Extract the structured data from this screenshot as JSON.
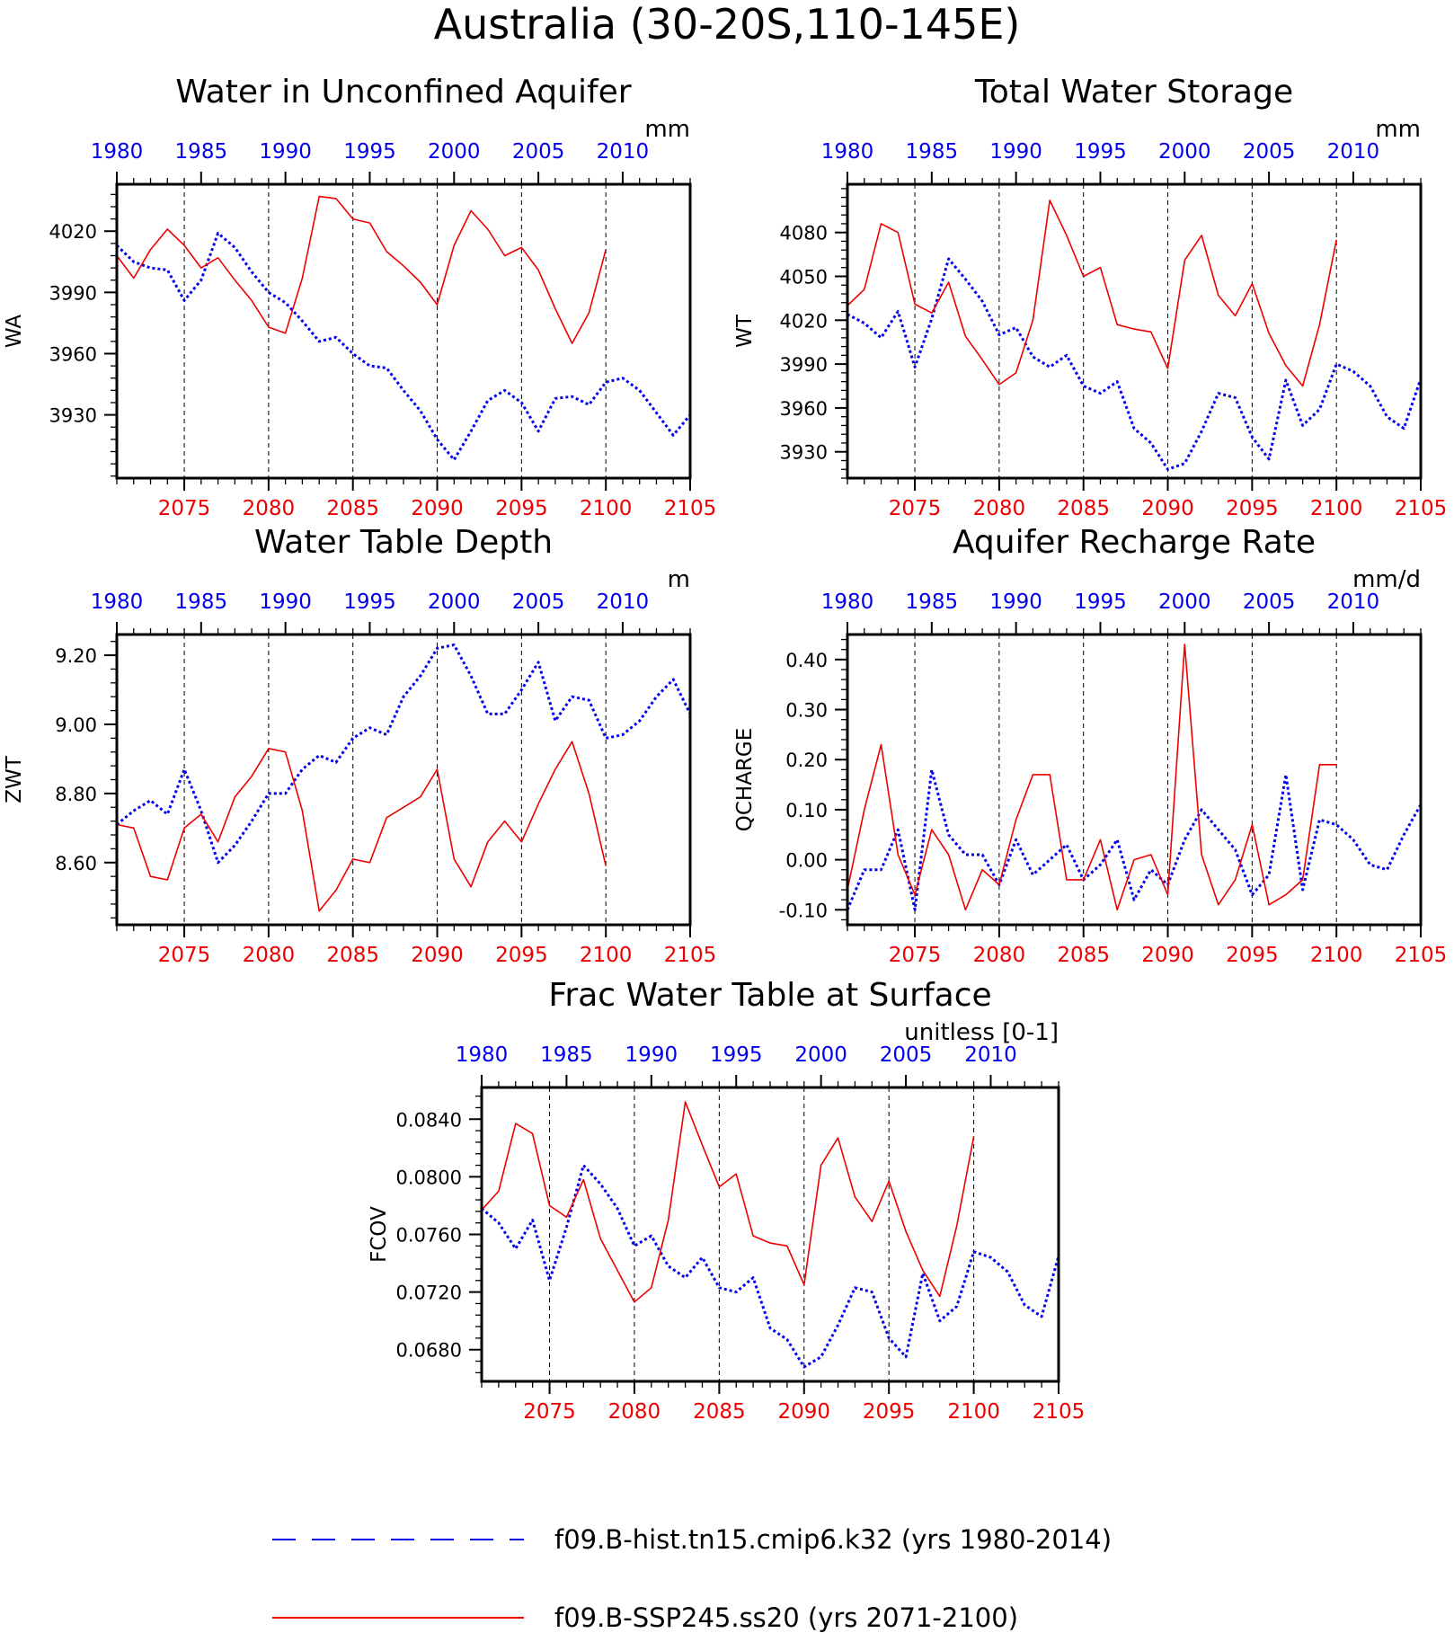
{
  "title": "Australia (30-20S,110-145E)",
  "colors": {
    "hist": "#0000ee",
    "ssp": "#ee0000",
    "axis": "#000000"
  },
  "legend": [
    {
      "label": "f09.B-hist.tn15.cmip6.k32 (yrs 1980-2014)",
      "color": "#0000ee",
      "style": "dashed"
    },
    {
      "label": "f09.B-SSP245.ss20 (yrs 2071-2100)",
      "color": "#ee0000",
      "style": "solid"
    }
  ],
  "chart_data": [
    {
      "type": "line",
      "title": "Water in Unconfined Aquifer",
      "units": "mm",
      "ylabel": "WA",
      "ylim": [
        3899,
        4043
      ],
      "yticks": [
        3930,
        3960,
        3990,
        4020
      ],
      "ytick_labels": [
        "3930",
        "3960",
        "3990",
        "4020"
      ],
      "hist_xlim": [
        1980,
        2014
      ],
      "ssp_xlim": [
        2071,
        2105
      ],
      "hist_ticks": [
        1980,
        1985,
        1990,
        1995,
        2000,
        2005,
        2010
      ],
      "ssp_ticks": [
        2075,
        2080,
        2085,
        2090,
        2095,
        2100,
        2105
      ],
      "series": [
        {
          "name": "f09.B-hist.tn15.cmip6.k32",
          "x_start": 1980,
          "values": [
            4013,
            4005,
            4002,
            4001,
            3986,
            3996,
            4019,
            4012,
            4000,
            3990,
            3985,
            3976,
            3966,
            3968,
            3960,
            3954,
            3953,
            3942,
            3932,
            3918,
            3908,
            3922,
            3937,
            3942,
            3936,
            3922,
            3938,
            3939,
            3935,
            3946,
            3948,
            3942,
            3931,
            3920,
            3930
          ]
        },
        {
          "name": "f09.B-SSP245.ss20",
          "x_start": 2071,
          "values": [
            4008,
            3997,
            4011,
            4021,
            4013,
            4002,
            4007,
            3996,
            3986,
            3973,
            3970,
            3997,
            4037,
            4036,
            4026,
            4024,
            4010,
            4003,
            3995,
            3984,
            4013,
            4030,
            4021,
            4008,
            4012,
            4001,
            3982,
            3965,
            3980,
            4011
          ]
        }
      ]
    },
    {
      "type": "line",
      "title": "Total Water Storage",
      "units": "mm",
      "ylabel": "WT",
      "ylim": [
        3912,
        4113
      ],
      "yticks": [
        3930,
        3960,
        3990,
        4020,
        4050,
        4080
      ],
      "ytick_labels": [
        "3930",
        "3960",
        "3990",
        "4020",
        "4050",
        "4080"
      ],
      "hist_xlim": [
        1980,
        2014
      ],
      "ssp_xlim": [
        2071,
        2105
      ],
      "hist_ticks": [
        1980,
        1985,
        1990,
        1995,
        2000,
        2005,
        2010
      ],
      "ssp_ticks": [
        2075,
        2080,
        2085,
        2090,
        2095,
        2100,
        2105
      ],
      "series": [
        {
          "name": "f09.B-hist.tn15.cmip6.k32",
          "x_start": 1980,
          "values": [
            4024,
            4018,
            4008,
            4026,
            3988,
            4021,
            4062,
            4048,
            4033,
            4010,
            4015,
            3995,
            3988,
            3996,
            3975,
            3970,
            3978,
            3946,
            3936,
            3918,
            3922,
            3944,
            3970,
            3967,
            3940,
            3925,
            3979,
            3948,
            3959,
            3990,
            3985,
            3975,
            3954,
            3946,
            3980
          ]
        },
        {
          "name": "f09.B-SSP245.ss20",
          "x_start": 2071,
          "values": [
            4030,
            4041,
            4086,
            4080,
            4031,
            4025,
            4046,
            4009,
            3993,
            3976,
            3984,
            4020,
            4102,
            4078,
            4050,
            4056,
            4017,
            4014,
            4012,
            3987,
            4061,
            4078,
            4037,
            4023,
            4045,
            4011,
            3989,
            3975,
            4017,
            4075
          ]
        }
      ]
    },
    {
      "type": "line",
      "title": "Water Table Depth",
      "units": "m",
      "ylabel": "ZWT",
      "ylim": [
        8.42,
        9.26
      ],
      "yticks": [
        8.6,
        8.8,
        9.0,
        9.2
      ],
      "ytick_labels": [
        "8.60",
        "8.80",
        "9.00",
        "9.20"
      ],
      "hist_xlim": [
        1980,
        2014
      ],
      "ssp_xlim": [
        2071,
        2105
      ],
      "hist_ticks": [
        1980,
        1985,
        1990,
        1995,
        2000,
        2005,
        2010
      ],
      "ssp_ticks": [
        2075,
        2080,
        2085,
        2090,
        2095,
        2100,
        2105
      ],
      "series": [
        {
          "name": "f09.B-hist.tn15.cmip6.k32",
          "x_start": 1980,
          "values": [
            8.71,
            8.75,
            8.78,
            8.74,
            8.87,
            8.75,
            8.6,
            8.65,
            8.72,
            8.8,
            8.8,
            8.87,
            8.91,
            8.89,
            8.96,
            8.99,
            8.97,
            9.08,
            9.14,
            9.22,
            9.23,
            9.14,
            9.03,
            9.03,
            9.1,
            9.18,
            9.01,
            9.08,
            9.07,
            8.96,
            8.97,
            9.01,
            9.08,
            9.13,
            9.03
          ]
        },
        {
          "name": "f09.B-SSP245.ss20",
          "x_start": 2071,
          "values": [
            8.71,
            8.7,
            8.56,
            8.55,
            8.7,
            8.74,
            8.66,
            8.79,
            8.85,
            8.93,
            8.92,
            8.75,
            8.46,
            8.52,
            8.61,
            8.6,
            8.73,
            8.76,
            8.79,
            8.87,
            8.61,
            8.53,
            8.66,
            8.72,
            8.66,
            8.77,
            8.87,
            8.95,
            8.8,
            8.59
          ]
        }
      ]
    },
    {
      "type": "line",
      "title": "Aquifer Recharge Rate",
      "units": "mm/d",
      "ylabel": "QCHARGE",
      "ylim": [
        -0.13,
        0.45
      ],
      "yticks": [
        -0.1,
        0.0,
        0.1,
        0.2,
        0.3,
        0.4
      ],
      "ytick_labels": [
        "-0.10",
        "0.00",
        "0.10",
        "0.20",
        "0.30",
        "0.40"
      ],
      "hist_xlim": [
        1980,
        2014
      ],
      "ssp_xlim": [
        2071,
        2105
      ],
      "hist_ticks": [
        1980,
        1985,
        1990,
        1995,
        2000,
        2005,
        2010
      ],
      "ssp_ticks": [
        2075,
        2080,
        2085,
        2090,
        2095,
        2100,
        2105
      ],
      "series": [
        {
          "name": "f09.B-hist.tn15.cmip6.k32",
          "x_start": 1980,
          "values": [
            -0.1,
            -0.02,
            -0.02,
            0.06,
            -0.1,
            0.18,
            0.05,
            0.01,
            0.01,
            -0.05,
            0.04,
            -0.03,
            0.0,
            0.03,
            -0.04,
            -0.01,
            0.04,
            -0.08,
            -0.02,
            -0.05,
            0.04,
            0.1,
            0.06,
            0.02,
            -0.07,
            -0.03,
            0.17,
            -0.06,
            0.08,
            0.07,
            0.04,
            -0.01,
            -0.02,
            0.05,
            0.11
          ]
        },
        {
          "name": "f09.B-SSP245.ss20",
          "x_start": 2071,
          "values": [
            -0.06,
            0.1,
            0.23,
            0.01,
            -0.07,
            0.06,
            0.01,
            -0.1,
            -0.02,
            -0.05,
            0.08,
            0.17,
            0.17,
            -0.04,
            -0.04,
            0.04,
            -0.1,
            0.0,
            0.01,
            -0.07,
            0.43,
            0.01,
            -0.09,
            -0.04,
            0.07,
            -0.09,
            -0.07,
            -0.04,
            0.19,
            0.19
          ]
        }
      ]
    },
    {
      "type": "line",
      "title": "Frac Water Table at Surface",
      "units": "unitless [0-1]",
      "ylabel": "FCOV",
      "ylim": [
        0.0658,
        0.0862
      ],
      "yticks": [
        0.068,
        0.072,
        0.076,
        0.08,
        0.084
      ],
      "ytick_labels": [
        "0.0680",
        "0.0720",
        "0.0760",
        "0.0800",
        "0.0840"
      ],
      "hist_xlim": [
        1980,
        2014
      ],
      "ssp_xlim": [
        2071,
        2105
      ],
      "hist_ticks": [
        1980,
        1985,
        1990,
        1995,
        2000,
        2005,
        2010
      ],
      "ssp_ticks": [
        2075,
        2080,
        2085,
        2090,
        2095,
        2100,
        2105
      ],
      "series": [
        {
          "name": "f09.B-hist.tn15.cmip6.k32",
          "x_start": 1980,
          "values": [
            0.0778,
            0.0768,
            0.075,
            0.077,
            0.0728,
            0.0765,
            0.0808,
            0.0795,
            0.0778,
            0.0752,
            0.0759,
            0.0738,
            0.073,
            0.0744,
            0.0723,
            0.072,
            0.073,
            0.0695,
            0.0687,
            0.0668,
            0.0675,
            0.0697,
            0.0723,
            0.072,
            0.0688,
            0.0675,
            0.0733,
            0.07,
            0.071,
            0.0748,
            0.0744,
            0.0734,
            0.0711,
            0.0703,
            0.0745
          ]
        },
        {
          "name": "f09.B-SSP245.ss20",
          "x_start": 2071,
          "values": [
            0.0777,
            0.079,
            0.0837,
            0.083,
            0.078,
            0.0772,
            0.0798,
            0.0757,
            0.0735,
            0.0713,
            0.0723,
            0.077,
            0.0852,
            0.0822,
            0.0793,
            0.0802,
            0.0759,
            0.0754,
            0.0752,
            0.0725,
            0.0808,
            0.0827,
            0.0786,
            0.0769,
            0.0797,
            0.0762,
            0.0735,
            0.0717,
            0.0766,
            0.0828
          ]
        }
      ]
    }
  ]
}
